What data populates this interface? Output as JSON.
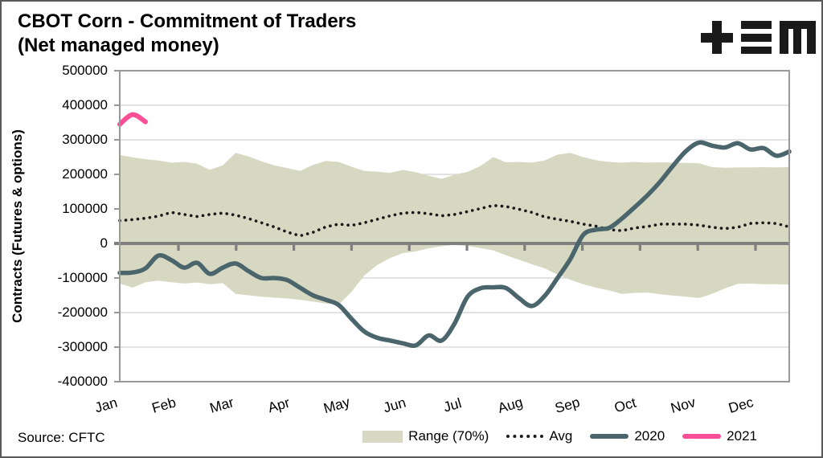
{
  "header": {
    "title_line1": "CBOT Corn - Commitment of Traders",
    "title_line2": "(Net managed money)",
    "logo": "tem-logo"
  },
  "footer": {
    "source": "Source: CFTC"
  },
  "colors": {
    "band": "#d7d8c1",
    "avg": "#1a1a1a",
    "line_2020": "#4a656c",
    "line_2021": "#fa4f97",
    "zero_axis": "#7f7f7f",
    "gridline": "#d9d9d9",
    "plot_border": "#999999"
  },
  "chart_data": {
    "type": "line",
    "title": "CBOT Corn - Commitment of Traders (Net managed money)",
    "ylabel": "Contracts (Futures & options)",
    "ylim": [
      -400000,
      500000
    ],
    "y_ticks": [
      500000,
      400000,
      300000,
      200000,
      100000,
      0,
      -100000,
      -200000,
      -300000,
      -400000
    ],
    "gridlines": [
      400000,
      300000,
      200000,
      100000,
      -100000,
      -200000,
      -300000
    ],
    "grid": true,
    "x_months": [
      "Jan",
      "Feb",
      "Mar",
      "Apr",
      "May",
      "Jun",
      "Jul",
      "Aug",
      "Sep",
      "Oct",
      "Nov",
      "Dec"
    ],
    "x_unit": "weekly CFTC reports, 53 points Jan-Dec",
    "legend_position": "bottom-right",
    "series": [
      {
        "name": "Range (70%)",
        "type": "band",
        "color": "#d7d8c1",
        "upper": [
          256000,
          249000,
          244000,
          240000,
          234000,
          236000,
          231000,
          213000,
          226000,
          262000,
          252000,
          238000,
          226000,
          218000,
          210000,
          227000,
          239000,
          236000,
          222000,
          210000,
          208000,
          204000,
          213000,
          206000,
          196000,
          187000,
          199000,
          207000,
          224000,
          250000,
          235000,
          236000,
          234000,
          240000,
          257000,
          262000,
          250000,
          241000,
          236000,
          234000,
          236000,
          234000,
          235000,
          234000,
          233000,
          232000,
          221000,
          219000,
          220000,
          220000,
          221000,
          220000,
          221000
        ],
        "lower": [
          -116000,
          -128000,
          -112000,
          -108000,
          -112000,
          -116000,
          -113000,
          -118000,
          -115000,
          -146000,
          -150000,
          -154000,
          -157000,
          -159000,
          -163000,
          -168000,
          -174000,
          -177000,
          -140000,
          -92000,
          -62000,
          -42000,
          -28000,
          -23000,
          -14000,
          -8000,
          -4000,
          -7000,
          -13000,
          -20000,
          -34000,
          -47000,
          -60000,
          -72000,
          -90000,
          -105000,
          -118000,
          -128000,
          -136000,
          -146000,
          -143000,
          -142000,
          -147000,
          -151000,
          -154000,
          -158000,
          -146000,
          -130000,
          -117000,
          -116000,
          -118000,
          -118000,
          -119000
        ]
      },
      {
        "name": "Avg",
        "type": "dotted-line",
        "color": "#1a1a1a",
        "values": [
          66000,
          69000,
          73000,
          79000,
          90000,
          84000,
          78000,
          84000,
          88000,
          82000,
          72000,
          60000,
          48000,
          33000,
          22000,
          32000,
          48000,
          56000,
          52000,
          60000,
          70000,
          80000,
          88000,
          90000,
          86000,
          80000,
          84000,
          92000,
          101000,
          110000,
          107000,
          99000,
          90000,
          77000,
          70000,
          64000,
          56000,
          50000,
          40000,
          37000,
          45000,
          49000,
          56000,
          56000,
          56000,
          53000,
          47000,
          43000,
          47000,
          58000,
          60000,
          58000,
          48000
        ]
      },
      {
        "name": "2020",
        "type": "line",
        "color": "#4a656c",
        "values": [
          -85000,
          -84000,
          -72000,
          -35000,
          -48000,
          -70000,
          -56000,
          -88000,
          -70000,
          -58000,
          -80000,
          -100000,
          -100000,
          -106000,
          -128000,
          -150000,
          -163000,
          -178000,
          -218000,
          -255000,
          -273000,
          -281000,
          -289000,
          -295000,
          -266000,
          -281000,
          -232000,
          -155000,
          -130000,
          -127000,
          -129000,
          -158000,
          -181000,
          -152000,
          -100000,
          -45000,
          25000,
          40000,
          45000,
          72000,
          105000,
          140000,
          180000,
          226000,
          268000,
          292000,
          283000,
          278000,
          290000,
          272000,
          276000,
          254000,
          266000
        ]
      },
      {
        "name": "2021",
        "type": "line",
        "color": "#fa4f97",
        "values": [
          345000,
          373000,
          352000
        ]
      }
    ]
  }
}
